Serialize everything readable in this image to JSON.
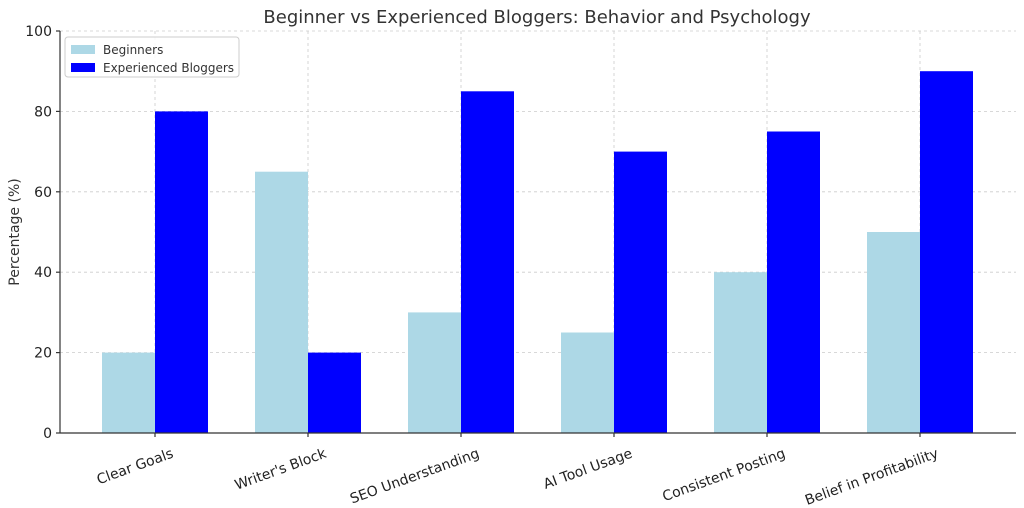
{
  "chart_data": {
    "type": "bar",
    "title": "Beginner vs Experienced Bloggers: Behavior and Psychology",
    "xlabel": "",
    "ylabel": "Percentage (%)",
    "ylim": [
      0,
      100
    ],
    "yticks": [
      0,
      20,
      40,
      60,
      80,
      100
    ],
    "grid": true,
    "legend_position": "top-left",
    "categories": [
      "Clear Goals",
      "Writer's Block",
      "SEO Understanding",
      "AI Tool Usage",
      "Consistent Posting",
      "Belief in Profitability"
    ],
    "series": [
      {
        "name": "Beginners",
        "color": "#add8e6",
        "values": [
          20,
          65,
          30,
          25,
          40,
          50
        ]
      },
      {
        "name": "Experienced Bloggers",
        "color": "#0000ff",
        "values": [
          80,
          20,
          85,
          70,
          75,
          90
        ]
      }
    ]
  }
}
